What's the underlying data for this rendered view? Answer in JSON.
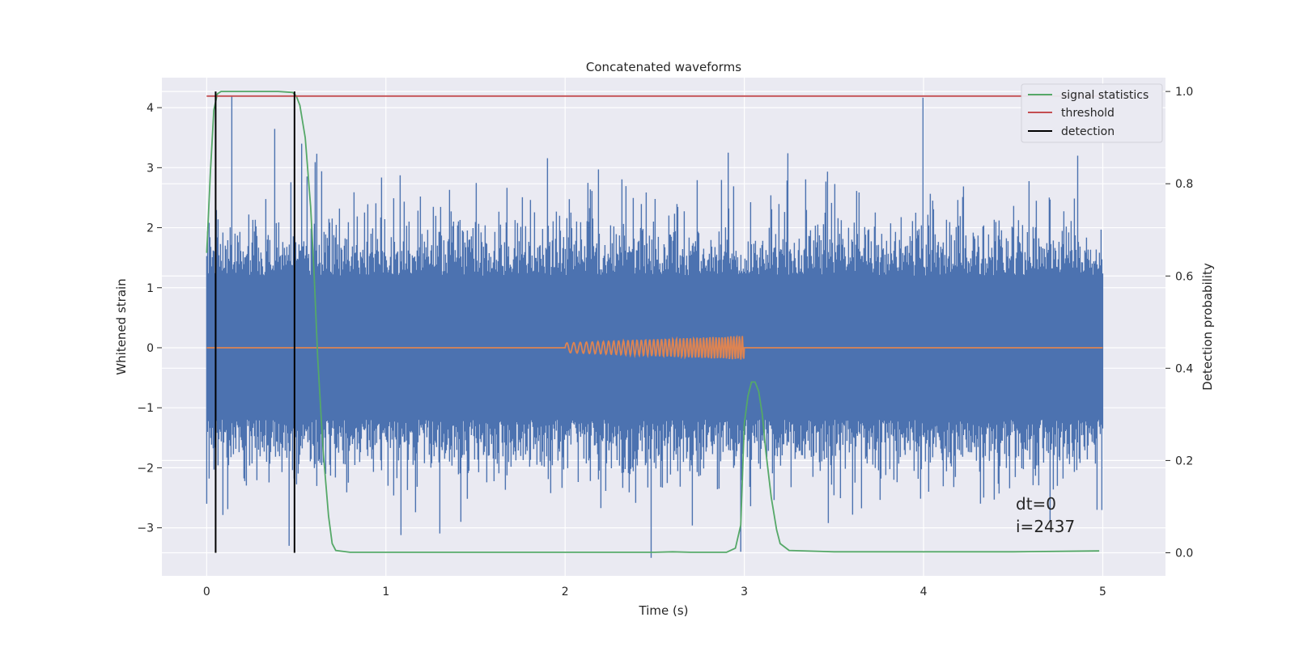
{
  "chart_data": {
    "type": "line",
    "title": "Concatenated waveforms",
    "xlabel": "Time (s)",
    "ylabel_left": "Whitened strain",
    "ylabel_right": "Detection probability",
    "xlim": [
      -0.25,
      5.35
    ],
    "ylim_left": [
      -3.8,
      4.5
    ],
    "ylim_right": [
      -0.05,
      1.03
    ],
    "x_ticks": [
      0,
      1,
      2,
      3,
      4,
      5
    ],
    "y_ticks_left": [
      -3,
      -2,
      -1,
      0,
      1,
      2,
      3,
      4
    ],
    "y_ticks_right": [
      0.0,
      0.2,
      0.4,
      0.6,
      0.8,
      1.0
    ],
    "grid": true,
    "legend_position": "top-right",
    "series": [
      {
        "name": "",
        "axis": "left",
        "color": "#4c72b0",
        "kind": "noise",
        "x_range": [
          0,
          5
        ],
        "envelope": {
          "upper_typical": 1.3,
          "lower_typical": -1.3,
          "max": 4.2,
          "min": -3.5
        }
      },
      {
        "name": "",
        "axis": "left",
        "color": "#dd8452",
        "kind": "chirp",
        "x_range": [
          0,
          5
        ],
        "chirp_start": 2.0,
        "chirp_end": 3.0,
        "amplitude_start": 0.08,
        "amplitude_end": 0.2
      },
      {
        "name": "signal statistics",
        "axis": "right",
        "color": "#55a868",
        "x": [
          0,
          0.02,
          0.04,
          0.06,
          0.08,
          0.1,
          0.2,
          0.3,
          0.4,
          0.48,
          0.5,
          0.52,
          0.55,
          0.58,
          0.6,
          0.62,
          0.65,
          0.68,
          0.7,
          0.72,
          0.8,
          1.0,
          2.0,
          2.5,
          2.6,
          2.7,
          2.9,
          2.95,
          2.98,
          3.0,
          3.02,
          3.04,
          3.06,
          3.08,
          3.1,
          3.12,
          3.15,
          3.18,
          3.2,
          3.25,
          3.5,
          3.9,
          4.5,
          4.98
        ],
        "y": [
          0.65,
          0.82,
          0.96,
          0.995,
          1.0,
          1.0,
          1.0,
          1.0,
          1.0,
          0.998,
          0.99,
          0.97,
          0.9,
          0.75,
          0.6,
          0.42,
          0.22,
          0.08,
          0.02,
          0.005,
          0.001,
          0.001,
          0.001,
          0.001,
          0.002,
          0.001,
          0.001,
          0.01,
          0.06,
          0.28,
          0.34,
          0.37,
          0.37,
          0.35,
          0.3,
          0.22,
          0.12,
          0.05,
          0.02,
          0.005,
          0.002,
          0.002,
          0.002,
          0.004
        ]
      },
      {
        "name": "threshold",
        "axis": "right",
        "color": "#c44e52",
        "x": [
          0,
          5
        ],
        "y": [
          0.99,
          0.99
        ]
      },
      {
        "name": "detection",
        "axis": "right",
        "color": "#000000",
        "vlines": [
          0.05,
          0.49
        ],
        "ymin": 0.0,
        "ymax": 1.0
      }
    ],
    "annotations": [
      "dt=0",
      "i=2437"
    ]
  }
}
